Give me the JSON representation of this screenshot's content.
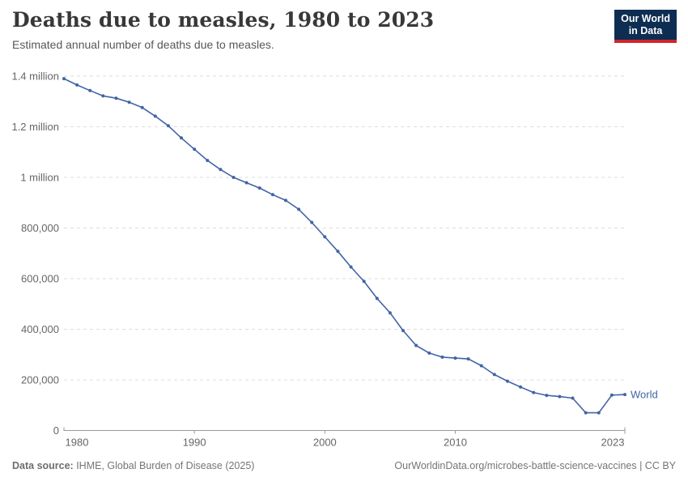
{
  "logo": {
    "line1": "Our World",
    "line2": "in Data"
  },
  "footer": {
    "source_label": "Data source:",
    "source_text": " IHME, Global Burden of Disease (2025)",
    "link": "OurWorldinData.org/microbes-battle-science-vaccines | CC BY"
  },
  "colors": {
    "line": "#4164a5",
    "grid": "#dddddd",
    "axis": "#999999",
    "tick_text": "#666666",
    "logo_bg": "#0d2d52",
    "logo_accent": "#d1262b"
  },
  "chart_data": {
    "type": "line",
    "title": "Deaths due to measles, 1980 to 2023",
    "subtitle": "Estimated annual number of deaths due to measles.",
    "xlabel": "",
    "ylabel": "",
    "grid": "horizontal-dashed",
    "legend_position": "end-of-line-label",
    "ylim": [
      0,
      1400000
    ],
    "x": [
      1980,
      1981,
      1982,
      1983,
      1984,
      1985,
      1986,
      1987,
      1988,
      1989,
      1990,
      1991,
      1992,
      1993,
      1994,
      1995,
      1996,
      1997,
      1998,
      1999,
      2000,
      2001,
      2002,
      2003,
      2004,
      2005,
      2006,
      2007,
      2008,
      2009,
      2010,
      2011,
      2012,
      2013,
      2014,
      2015,
      2016,
      2017,
      2018,
      2019,
      2020,
      2021,
      2022,
      2023
    ],
    "series": [
      {
        "name": "World",
        "color": "#4164a5",
        "values": [
          1390000,
          1365000,
          1343000,
          1322000,
          1313000,
          1297000,
          1276000,
          1242000,
          1204000,
          1156000,
          1111000,
          1067000,
          1031000,
          1000000,
          979000,
          958000,
          932000,
          909000,
          874000,
          822000,
          765000,
          708000,
          646000,
          589000,
          522000,
          465000,
          395000,
          336000,
          306000,
          290000,
          286000,
          283000,
          256000,
          221000,
          195000,
          172000,
          150000,
          139000,
          134000,
          128000,
          70000,
          70000,
          140000,
          142000
        ]
      }
    ],
    "yticks": [
      {
        "value": 0,
        "label": "0"
      },
      {
        "value": 200000,
        "label": "200,000"
      },
      {
        "value": 400000,
        "label": "400,000"
      },
      {
        "value": 600000,
        "label": "600,000"
      },
      {
        "value": 800000,
        "label": "800,000"
      },
      {
        "value": 1000000,
        "label": "1 million"
      },
      {
        "value": 1200000,
        "label": "1.2 million"
      },
      {
        "value": 1400000,
        "label": "1.4 million"
      }
    ],
    "xticks": [
      {
        "value": 1980,
        "label": "1980"
      },
      {
        "value": 1990,
        "label": "1990"
      },
      {
        "value": 2000,
        "label": "2000"
      },
      {
        "value": 2010,
        "label": "2010"
      },
      {
        "value": 2023,
        "label": "2023"
      }
    ]
  }
}
